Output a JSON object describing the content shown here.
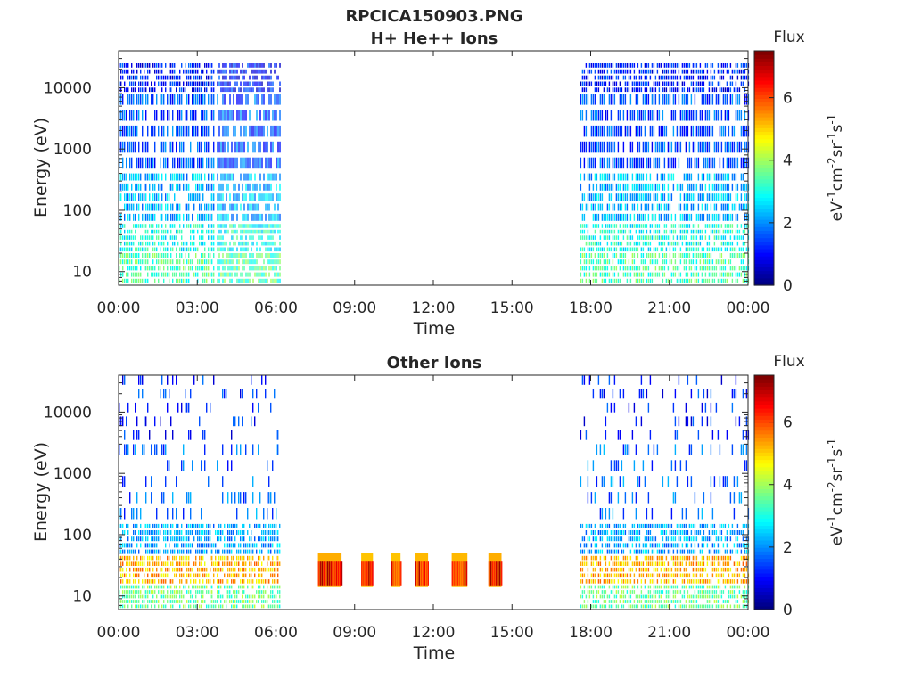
{
  "figure": {
    "title": "RPCICA150903.PNG"
  },
  "chart_data": [
    {
      "type": "heatmap",
      "title": "H+ He++ Ions",
      "xlabel": "Time",
      "ylabel": "Energy (eV)",
      "x_ticks": [
        "00:00",
        "03:00",
        "06:00",
        "09:00",
        "12:00",
        "15:00",
        "18:00",
        "21:00",
        "00:00"
      ],
      "xlim_hours": [
        0,
        24
      ],
      "y_scale": "log",
      "y_ticks": [
        "10",
        "100",
        "1000",
        "10000"
      ],
      "y_tick_values": [
        10,
        100,
        1000,
        10000
      ],
      "ylim": [
        6,
        40000
      ],
      "colorbar": {
        "label": "Flux",
        "unit": "eV-1cm-2sr-1s-1",
        "ticks": [
          "0",
          "2",
          "4",
          "6"
        ],
        "tick_values": [
          0,
          2,
          4,
          6
        ],
        "range": [
          0,
          7.5
        ],
        "colormap": "jet"
      },
      "data_intervals_hours": [
        [
          0,
          3.65
        ],
        [
          3.75,
          6.15
        ],
        [
          17.6,
          24
        ]
      ],
      "energy_bands": [
        {
          "energy_min": 6,
          "energy_max": 20,
          "flux": 3.4
        },
        {
          "energy_min": 20,
          "energy_max": 60,
          "flux": 3.0
        },
        {
          "energy_min": 60,
          "energy_max": 400,
          "flux": 2.3
        },
        {
          "energy_min": 400,
          "energy_max": 8000,
          "flux": 1.5
        },
        {
          "energy_min": 8000,
          "energy_max": 25000,
          "flux": 1.1
        }
      ]
    },
    {
      "type": "heatmap",
      "title": "Other Ions",
      "xlabel": "Time",
      "ylabel": "Energy (eV)",
      "x_ticks": [
        "00:00",
        "03:00",
        "06:00",
        "09:00",
        "12:00",
        "15:00",
        "18:00",
        "21:00",
        "00:00"
      ],
      "xlim_hours": [
        0,
        24
      ],
      "y_scale": "log",
      "y_ticks": [
        "10",
        "100",
        "1000",
        "10000"
      ],
      "y_tick_values": [
        10,
        100,
        1000,
        10000
      ],
      "ylim": [
        6,
        40000
      ],
      "colorbar": {
        "label": "Flux",
        "unit": "eV-1cm-2sr-1s-1",
        "ticks": [
          "0",
          "2",
          "4",
          "6"
        ],
        "tick_values": [
          0,
          2,
          4,
          6
        ],
        "range": [
          0,
          7.5
        ],
        "colormap": "jet"
      },
      "data_intervals_hours": [
        [
          0,
          6.15
        ],
        [
          17.6,
          24
        ]
      ],
      "energy_bands": [
        {
          "energy_min": 6,
          "energy_max": 15,
          "flux": 3.6
        },
        {
          "energy_min": 15,
          "energy_max": 45,
          "flux": 5.2
        },
        {
          "energy_min": 45,
          "energy_max": 150,
          "flux": 2.2
        },
        {
          "energy_min": 150,
          "energy_max": 3000,
          "flux": 1.7
        },
        {
          "energy_min": 3000,
          "energy_max": 40000,
          "flux": 1.2
        }
      ],
      "bursts": [
        {
          "start_hour": 7.6,
          "end_hour": 8.5,
          "energy_min": 14,
          "energy_max": 50,
          "flux": 6.6
        },
        {
          "start_hour": 9.25,
          "end_hour": 9.7,
          "energy_min": 14,
          "energy_max": 50,
          "flux": 6.4
        },
        {
          "start_hour": 10.4,
          "end_hour": 10.75,
          "energy_min": 14,
          "energy_max": 50,
          "flux": 6.4
        },
        {
          "start_hour": 11.3,
          "end_hour": 11.8,
          "energy_min": 14,
          "energy_max": 50,
          "flux": 6.5
        },
        {
          "start_hour": 12.7,
          "end_hour": 13.3,
          "energy_min": 14,
          "energy_max": 50,
          "flux": 6.5
        },
        {
          "start_hour": 14.1,
          "end_hour": 14.6,
          "energy_min": 14,
          "energy_max": 50,
          "flux": 6.6
        }
      ]
    }
  ]
}
